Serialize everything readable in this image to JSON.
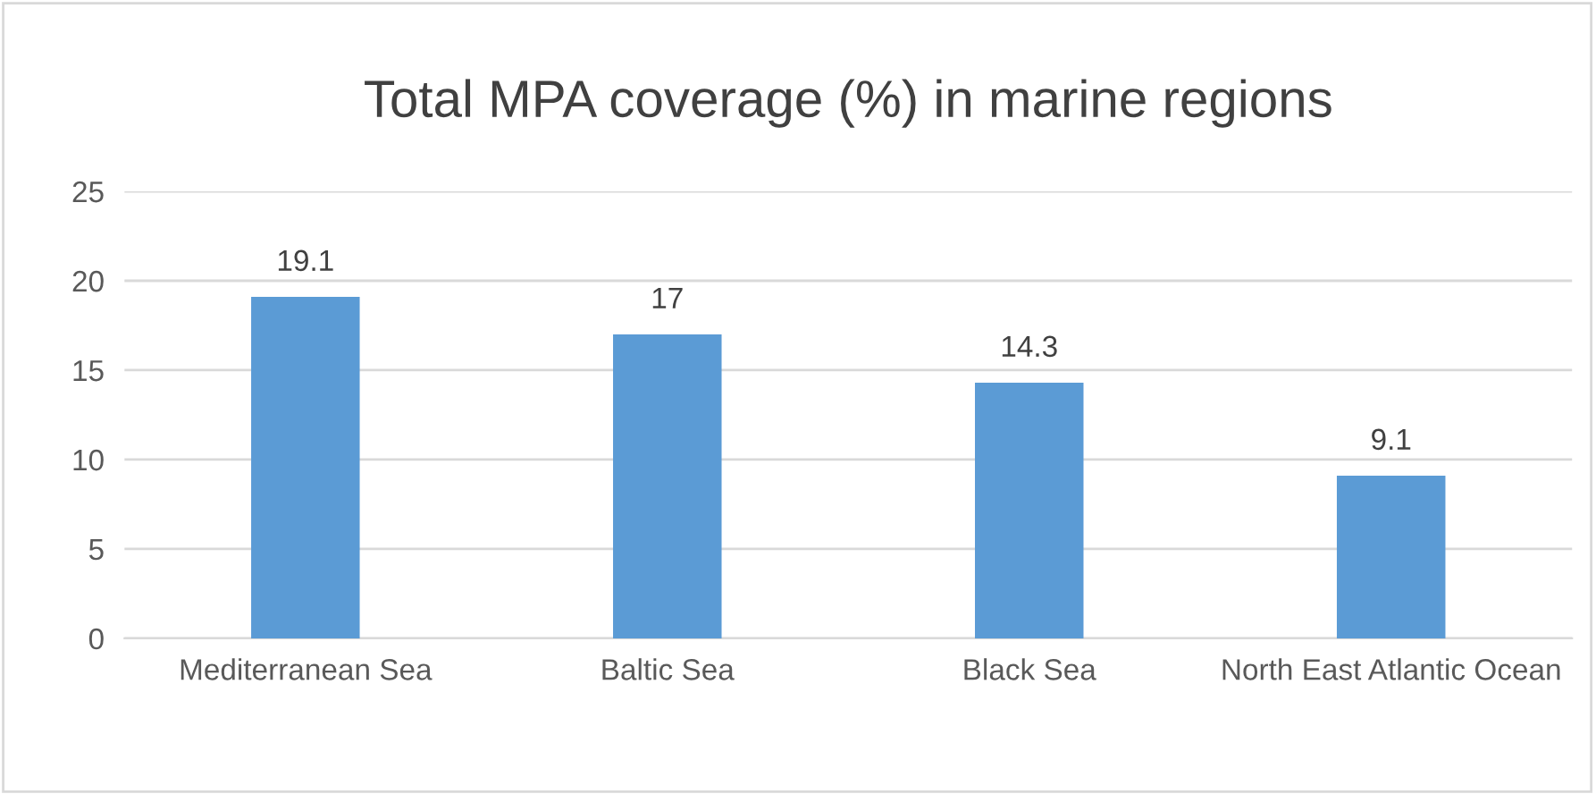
{
  "chart_data": {
    "type": "bar",
    "title": "Total MPA coverage (%) in marine regions",
    "categories": [
      "Mediterranean Sea",
      "Baltic Sea",
      "Black Sea",
      "North East Atlantic Ocean"
    ],
    "values": [
      19.1,
      17,
      14.3,
      9.1
    ],
    "color": "#5b9bd5",
    "ylim": [
      0,
      25
    ],
    "yticks": [
      0,
      5,
      10,
      15,
      20,
      25
    ],
    "grid": "y",
    "data_labels": true,
    "legend": false
  }
}
